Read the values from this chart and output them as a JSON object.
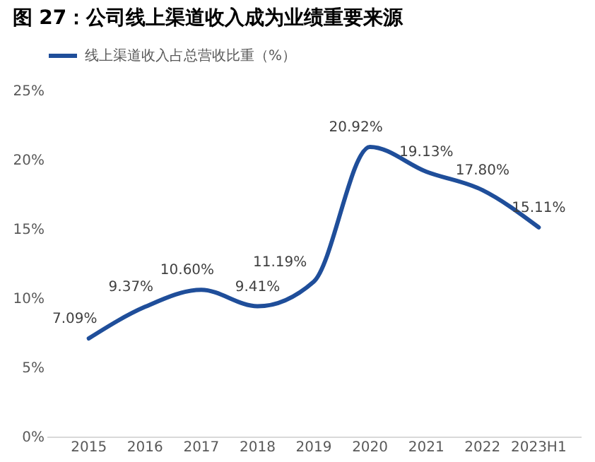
{
  "chart_data": {
    "type": "line",
    "title": "图 27：公司线上渠道收入成为业绩重要来源",
    "categories": [
      "2015",
      "2016",
      "2017",
      "2018",
      "2019",
      "2020",
      "2021",
      "2022",
      "2023H1"
    ],
    "series": [
      {
        "name": "线上渠道收入占总营收比重（%）",
        "color": "#1f4e9a",
        "values": [
          7.09,
          9.37,
          10.6,
          9.41,
          11.19,
          20.92,
          19.13,
          17.8,
          15.11
        ],
        "value_labels": [
          "7.09%",
          "9.37%",
          "10.60%",
          "9.41%",
          "11.19%",
          "20.92%",
          "19.13%",
          "17.80%",
          "15.11%"
        ]
      }
    ],
    "ylim": [
      0,
      25
    ],
    "yticks": [
      {
        "value": 0,
        "label": "0%"
      },
      {
        "value": 5,
        "label": "5%"
      },
      {
        "value": 10,
        "label": "10%"
      },
      {
        "value": 15,
        "label": "15%"
      },
      {
        "value": 20,
        "label": "20%"
      },
      {
        "value": 25,
        "label": "25%"
      }
    ],
    "grid": false,
    "legend": "top",
    "marker": "none",
    "line_style": "solid"
  }
}
